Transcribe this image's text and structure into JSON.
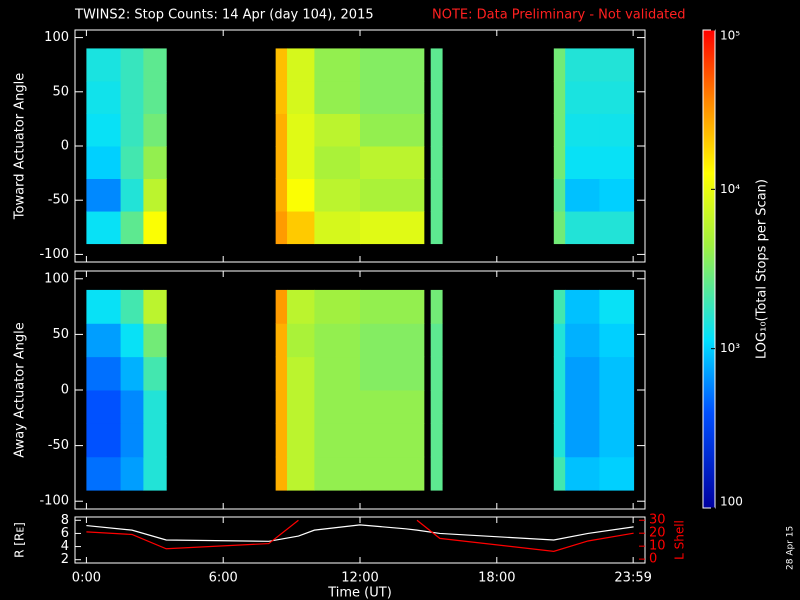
{
  "title": "TWINS2: Stop Counts: 14 Apr (day 104), 2015",
  "note": "NOTE: Data Preliminary - Not validated",
  "stamp": "28 Apr 15",
  "colorbar": {
    "label": "LOG₁₀(Total Stops per Scan)",
    "lim": [
      100,
      100000
    ],
    "log": true,
    "ticks": [
      100,
      {
        "value": 1000,
        "label": "10³"
      },
      {
        "value": 10000,
        "label": "10⁴"
      },
      {
        "value": 100000,
        "label": "10⁵"
      }
    ]
  },
  "chart_data": [
    {
      "type": "heatmap",
      "ylabel": "Toward Actuator Angle",
      "xlim": [
        -0.5,
        24.5
      ],
      "ylim": [
        -107,
        107
      ],
      "yticks": [
        -100,
        -50,
        0,
        50,
        100
      ],
      "x": [
        0,
        1.5,
        2.5,
        3.5,
        8.3,
        8.8,
        10,
        12,
        14.8,
        15.1,
        15.6,
        20.5,
        21,
        22.5,
        24
      ],
      "y": [
        -90,
        -60,
        -30,
        0,
        30,
        60,
        90
      ],
      "values": [
        [
          1200,
          2500,
          12000,
          null,
          30000,
          20000,
          8000,
          9000,
          null,
          2500,
          null,
          3000,
          1500,
          1500
        ],
        [
          600,
          1500,
          6000,
          null,
          25000,
          12000,
          6000,
          5000,
          null,
          2500,
          null,
          2500,
          900,
          1000
        ],
        [
          1000,
          2000,
          4000,
          null,
          25000,
          9000,
          5000,
          6000,
          null,
          2500,
          null,
          3000,
          1200,
          1200
        ],
        [
          1200,
          1800,
          3000,
          null,
          25000,
          9000,
          6000,
          4000,
          null,
          2500,
          null,
          3000,
          1300,
          1300
        ],
        [
          1300,
          1800,
          2500,
          null,
          22000,
          8000,
          4000,
          3500,
          null,
          2500,
          null,
          3000,
          1400,
          1400
        ],
        [
          1400,
          1800,
          2500,
          null,
          22000,
          8000,
          4000,
          3500,
          null,
          2500,
          null,
          3000,
          1500,
          1500
        ]
      ]
    },
    {
      "type": "heatmap",
      "ylabel": "Away Actuator Angle",
      "xlim": [
        -0.5,
        24.5
      ],
      "ylim": [
        -107,
        107
      ],
      "yticks": [
        -100,
        -50,
        0,
        50,
        100
      ],
      "x": [
        0,
        1.5,
        2.5,
        3.5,
        8.3,
        8.8,
        10,
        12,
        14.8,
        15.1,
        15.6,
        20.5,
        21,
        22.5,
        24
      ],
      "y": [
        -90,
        -60,
        -30,
        0,
        30,
        60,
        90
      ],
      "values": [
        [
          500,
          700,
          1500,
          null,
          25000,
          6000,
          4000,
          4000,
          null,
          2500,
          null,
          2000,
          900,
          1000
        ],
        [
          400,
          600,
          1500,
          null,
          25000,
          6000,
          4000,
          4000,
          null,
          2500,
          null,
          1500,
          700,
          900
        ],
        [
          400,
          600,
          1500,
          null,
          25000,
          6000,
          4000,
          4000,
          null,
          2500,
          null,
          1500,
          700,
          900
        ],
        [
          500,
          800,
          2000,
          null,
          25000,
          6000,
          4000,
          3500,
          null,
          2500,
          null,
          1500,
          700,
          900
        ],
        [
          700,
          1200,
          3000,
          null,
          25000,
          5000,
          4000,
          3500,
          null,
          2500,
          null,
          1500,
          800,
          1000
        ],
        [
          1200,
          2000,
          6000,
          null,
          30000,
          6000,
          4500,
          4000,
          null,
          3000,
          null,
          2000,
          900,
          1200
        ]
      ]
    },
    {
      "type": "line",
      "xlabel": "Time (UT)",
      "ylabel": "R [Rᴇ]",
      "y2label": "L Shell",
      "xlim": [
        -0.5,
        24.5
      ],
      "xticks": [
        {
          "value": 0,
          "label": "0:00"
        },
        {
          "value": 6,
          "label": "6:00"
        },
        {
          "value": 12,
          "label": "12:00"
        },
        {
          "value": 18,
          "label": "18:00"
        },
        {
          "value": 23.98,
          "label": "23:59"
        }
      ],
      "ylim": [
        1.5,
        8.5
      ],
      "yticks": [
        2,
        4,
        6,
        8
      ],
      "y2lim": [
        -3,
        32.5
      ],
      "y2ticks": [
        0,
        10,
        20,
        30
      ],
      "x": [
        0,
        2,
        3.5,
        8,
        9.3,
        10,
        12,
        14,
        14.5,
        15.5,
        20.5,
        22,
        24
      ],
      "series": [
        {
          "name": "R",
          "color": "#ffffff",
          "values": [
            7.2,
            6.5,
            5,
            4.8,
            5.6,
            6.5,
            7.3,
            6.7,
            6.5,
            6,
            5,
            6,
            7
          ]
        },
        {
          "name": "L Shell",
          "color": "#ff0000",
          "axis": "y2",
          "values": [
            21,
            19,
            8,
            12,
            30,
            null,
            null,
            null,
            30,
            16,
            6,
            14,
            20
          ]
        }
      ]
    }
  ]
}
